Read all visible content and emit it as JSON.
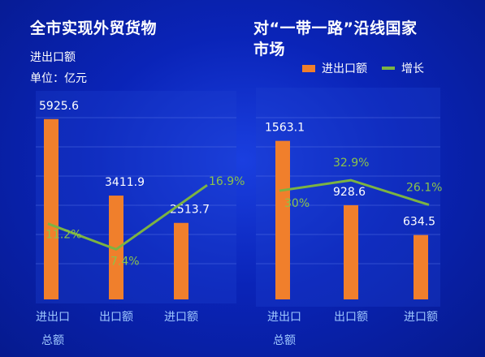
{
  "left_panel": {
    "title": "全市实现外贸货物",
    "subtitle": "进出口额",
    "unit": "单位：亿元"
  },
  "right_panel": {
    "title_line1": "对“一带一路”沿线国家",
    "title_line2": "市场"
  },
  "legend": {
    "bar_label": "进出口额",
    "line_label": "增长",
    "bar_color": "#f07f2c",
    "line_color": "#7cb342"
  },
  "chart_data": [
    {
      "type": "bar",
      "categories": [
        "进出口总额",
        "出口额",
        "进口额"
      ],
      "category_lines": [
        [
          "进出口",
          "总额"
        ],
        [
          "出口额"
        ],
        [
          "进口额"
        ]
      ],
      "series": [
        {
          "name": "进出口额",
          "type": "bar",
          "values": [
            5925.6,
            3411.9,
            2513.7
          ],
          "labels": [
            "5925.6",
            "3411.9",
            "2513.7"
          ]
        },
        {
          "name": "增长",
          "type": "line",
          "values": [
            11.2,
            7.4,
            16.9
          ],
          "labels": [
            "11.2%",
            "7.4%",
            "16.9%"
          ]
        }
      ],
      "ylim": [
        0,
        8000
      ],
      "y2lim": [
        0,
        30
      ],
      "grid": true
    },
    {
      "type": "bar",
      "categories": [
        "进出口总额",
        "出口额",
        "进口额"
      ],
      "category_lines": [
        [
          "进出口",
          "总额"
        ],
        [
          "出口额"
        ],
        [
          "进口额"
        ]
      ],
      "series": [
        {
          "name": "进出口额",
          "type": "bar",
          "values": [
            1563.1,
            928.6,
            634.5
          ],
          "labels": [
            "1563.1",
            "928.6",
            "634.5"
          ]
        },
        {
          "name": "增长",
          "type": "line",
          "values": [
            30,
            32.9,
            26.1
          ],
          "labels": [
            "30%",
            "32.9%",
            "26.1%"
          ]
        }
      ],
      "ylim": [
        0,
        2400
      ],
      "y2lim": [
        0,
        56
      ],
      "grid": true
    }
  ]
}
